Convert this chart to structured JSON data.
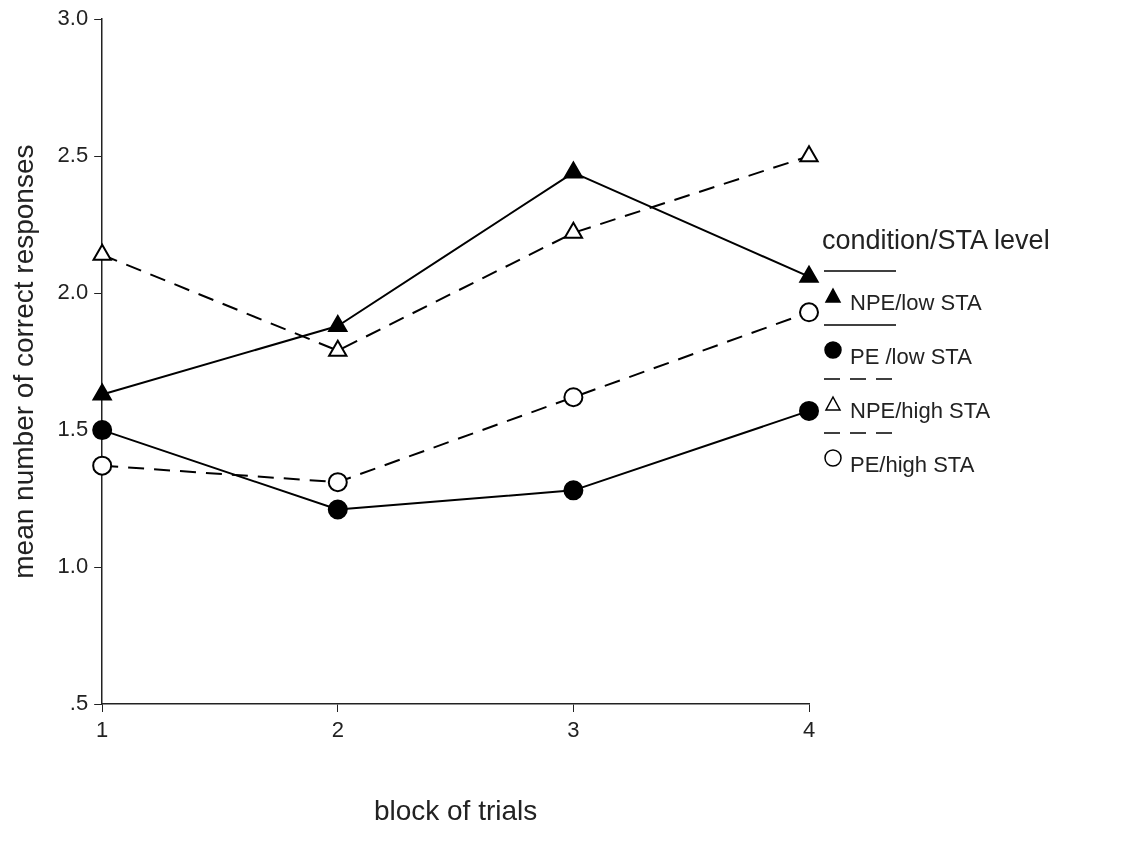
{
  "chart_data": {
    "type": "line",
    "xlabel": "block of trials",
    "ylabel": "mean number of correct responses",
    "legend_title": "condition/STA level",
    "legend": "right",
    "x": [
      1,
      2,
      3,
      4
    ],
    "xlim": [
      1,
      4
    ],
    "xticks": [
      1,
      2,
      3,
      4
    ],
    "ylim": [
      0.5,
      3
    ],
    "yticks": [
      {
        "value": 0.5,
        "label": ".5"
      },
      {
        "value": 1,
        "label": "1.0"
      },
      {
        "value": 1.5,
        "label": "1.5"
      },
      {
        "value": 2,
        "label": "2.0"
      },
      {
        "value": 2.5,
        "label": "2.5"
      },
      {
        "value": 3,
        "label": "3.0"
      }
    ],
    "grid": false,
    "series": [
      {
        "name": "NPE/low STA",
        "color": "#000000",
        "marker": "triangle",
        "line_style": "solid",
        "values": [
          1.63,
          1.88,
          2.44,
          2.06
        ]
      },
      {
        "name": "PE /low STA",
        "color": "#000000",
        "marker": "circle",
        "line_style": "solid",
        "values": [
          1.5,
          1.21,
          1.28,
          1.57
        ]
      },
      {
        "name": "NPE/high STA",
        "color": "#000000",
        "marker": "triangle",
        "line_style": "dashed",
        "values": [
          2.14,
          1.79,
          2.22,
          2.5
        ]
      },
      {
        "name": "PE/high STA",
        "color": "#000000",
        "marker": "circle",
        "line_style": "dashed",
        "values": [
          1.37,
          1.31,
          1.62,
          1.93
        ]
      }
    ]
  }
}
